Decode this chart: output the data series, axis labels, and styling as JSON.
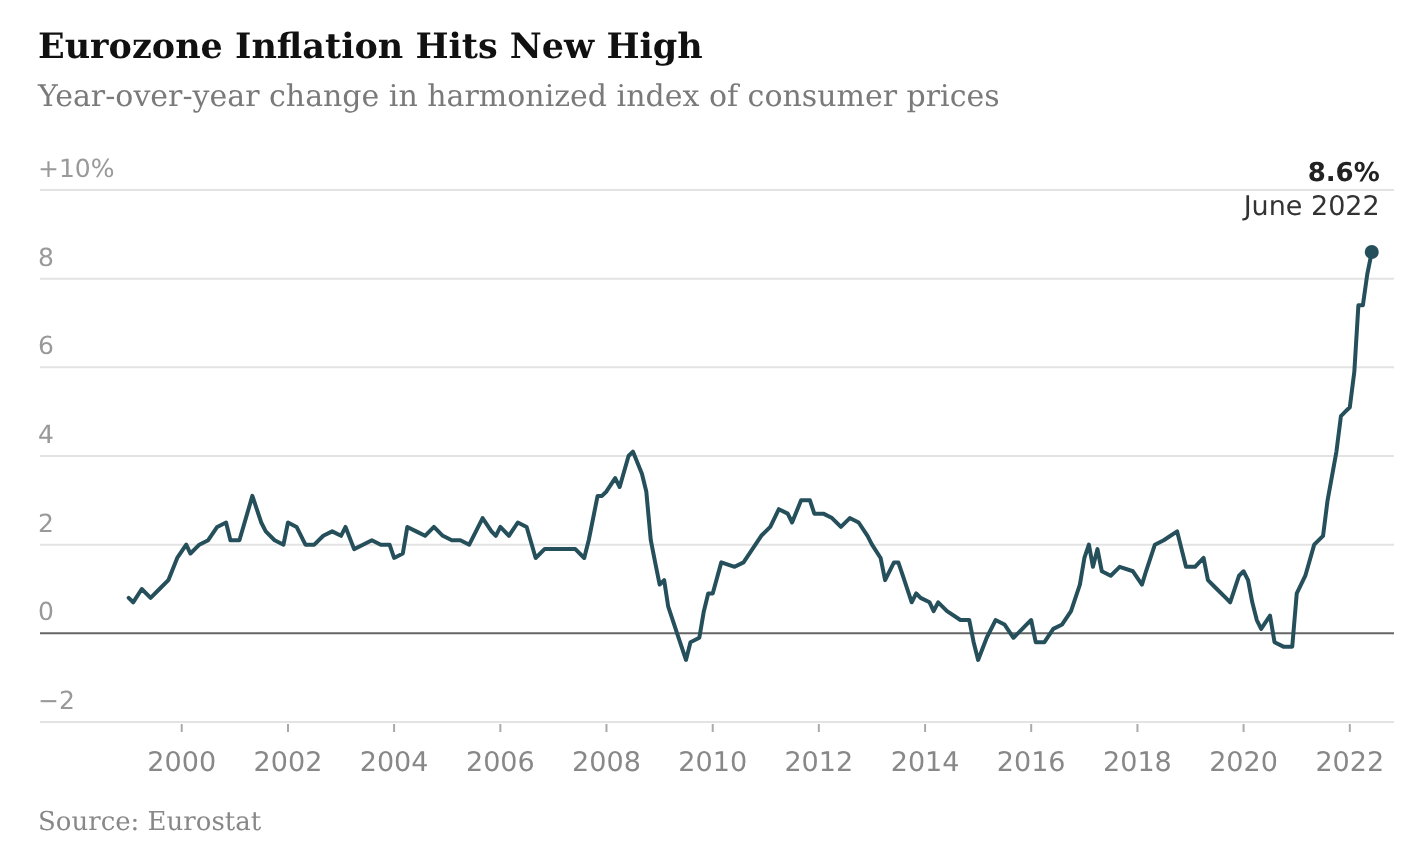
{
  "chart_data": {
    "type": "line",
    "title": "Eurozone Inflation Hits New High",
    "subtitle": "Year-over-year change in harmonized index of consumer prices",
    "annotations": [
      {
        "text": "8.6%",
        "x": "2022-06",
        "y": 8.6
      },
      {
        "text": "June 2022",
        "x": "2022-06",
        "y": 8.6
      },
      "Source: Eurostat"
    ],
    "xlim": [
      "1997-05",
      "2022-11"
    ],
    "xticks": [
      "2000",
      "2002",
      "2004",
      "2006",
      "2008",
      "2010",
      "2012",
      "2014",
      "2016",
      "2018",
      "2020",
      "2022"
    ],
    "ylim": [
      -2,
      10
    ],
    "yticks": [
      {
        "value": -2,
        "label": "−2"
      },
      0,
      2,
      4,
      6,
      8,
      {
        "value": 10,
        "label": "+10%"
      }
    ],
    "grid": "y",
    "series": [
      {
        "color": "#25505b",
        "x": [
          "1999-01",
          "1999-02",
          "1999-04",
          "1999-06",
          "1999-08",
          "1999-10",
          "1999-12",
          "2000-02",
          "2000-03",
          "2000-05",
          "2000-07",
          "2000-09",
          "2000-11",
          "2000-12",
          "2001-02",
          "2001-05",
          "2001-07",
          "2001-08",
          "2001-10",
          "2001-12",
          "2002-01",
          "2002-03",
          "2002-05",
          "2002-07",
          "2002-09",
          "2002-11",
          "2003-01",
          "2003-02",
          "2003-04",
          "2003-06",
          "2003-08",
          "2003-10",
          "2003-12",
          "2004-01",
          "2004-03",
          "2004-04",
          "2004-06",
          "2004-08",
          "2004-10",
          "2004-12",
          "2005-02",
          "2005-04",
          "2005-06",
          "2005-09",
          "2005-11",
          "2005-12",
          "2006-01",
          "2006-03",
          "2006-05",
          "2006-07",
          "2006-09",
          "2006-11",
          "2007-01",
          "2007-04",
          "2007-06",
          "2007-08",
          "2007-09",
          "2007-11",
          "2007-12",
          "2008-01",
          "2008-03",
          "2008-04",
          "2008-06",
          "2008-07",
          "2008-09",
          "2008-10",
          "2008-11",
          "2008-12",
          "2009-01",
          "2009-02",
          "2009-03",
          "2009-05",
          "2009-07",
          "2009-08",
          "2009-10",
          "2009-11",
          "2009-12",
          "2010-01",
          "2010-03",
          "2010-06",
          "2010-08",
          "2010-10",
          "2010-12",
          "2011-02",
          "2011-04",
          "2011-06",
          "2011-07",
          "2011-09",
          "2011-11",
          "2011-12",
          "2012-02",
          "2012-04",
          "2012-06",
          "2012-08",
          "2012-10",
          "2012-12",
          "2013-01",
          "2013-03",
          "2013-04",
          "2013-06",
          "2013-07",
          "2013-08",
          "2013-10",
          "2013-11",
          "2013-12",
          "2014-02",
          "2014-03",
          "2014-04",
          "2014-06",
          "2014-09",
          "2014-11",
          "2014-12",
          "2015-01",
          "2015-03",
          "2015-05",
          "2015-07",
          "2015-09",
          "2015-11",
          "2015-12",
          "2016-01",
          "2016-02",
          "2016-04",
          "2016-06",
          "2016-08",
          "2016-10",
          "2016-12",
          "2017-01",
          "2017-02",
          "2017-03",
          "2017-04",
          "2017-05",
          "2017-07",
          "2017-09",
          "2017-12",
          "2018-02",
          "2018-03",
          "2018-05",
          "2018-07",
          "2018-10",
          "2018-12",
          "2019-02",
          "2019-04",
          "2019-05",
          "2019-07",
          "2019-09",
          "2019-10",
          "2019-12",
          "2020-01",
          "2020-02",
          "2020-03",
          "2020-04",
          "2020-05",
          "2020-07",
          "2020-08",
          "2020-10",
          "2020-12",
          "2021-01",
          "2021-03",
          "2021-05",
          "2021-07",
          "2021-08",
          "2021-10",
          "2021-11",
          "2021-12",
          "2022-01",
          "2022-02",
          "2022-03",
          "2022-04",
          "2022-05",
          "2022-06"
        ],
        "values": [
          0.8,
          0.7,
          1.0,
          0.8,
          1.0,
          1.2,
          1.7,
          2.0,
          1.8,
          2.0,
          2.1,
          2.4,
          2.5,
          2.1,
          2.1,
          3.1,
          2.5,
          2.3,
          2.1,
          2.0,
          2.5,
          2.4,
          2.0,
          2.0,
          2.2,
          2.3,
          2.2,
          2.4,
          1.9,
          2.0,
          2.1,
          2.0,
          2.0,
          1.7,
          1.8,
          2.4,
          2.3,
          2.2,
          2.4,
          2.2,
          2.1,
          2.1,
          2.0,
          2.6,
          2.3,
          2.2,
          2.4,
          2.2,
          2.5,
          2.4,
          1.7,
          1.9,
          1.9,
          1.9,
          1.9,
          1.7,
          2.1,
          3.1,
          3.1,
          3.2,
          3.5,
          3.3,
          4.0,
          4.1,
          3.6,
          3.2,
          2.1,
          1.6,
          1.1,
          1.2,
          0.6,
          0.0,
          -0.6,
          -0.2,
          -0.1,
          0.5,
          0.9,
          0.9,
          1.6,
          1.5,
          1.6,
          1.9,
          2.2,
          2.4,
          2.8,
          2.7,
          2.5,
          3.0,
          3.0,
          2.7,
          2.7,
          2.6,
          2.4,
          2.6,
          2.5,
          2.2,
          2.0,
          1.7,
          1.2,
          1.6,
          1.6,
          1.3,
          0.7,
          0.9,
          0.8,
          0.7,
          0.5,
          0.7,
          0.5,
          0.3,
          0.3,
          -0.2,
          -0.6,
          -0.1,
          0.3,
          0.2,
          -0.1,
          0.1,
          0.2,
          0.3,
          -0.2,
          -0.2,
          0.1,
          0.2,
          0.5,
          1.1,
          1.7,
          2.0,
          1.5,
          1.9,
          1.4,
          1.3,
          1.5,
          1.4,
          1.1,
          1.4,
          2.0,
          2.1,
          2.3,
          1.5,
          1.5,
          1.7,
          1.2,
          1.0,
          0.8,
          0.7,
          1.3,
          1.4,
          1.2,
          0.7,
          0.3,
          0.1,
          0.4,
          -0.2,
          -0.3,
          -0.3,
          0.9,
          1.3,
          2.0,
          2.2,
          3.0,
          4.1,
          4.9,
          5.0,
          5.1,
          5.9,
          7.4,
          7.4,
          8.1,
          8.6
        ]
      },
      {
        "type": "scatter",
        "color": "#25505b",
        "x": [
          "2022-06"
        ],
        "values": [
          8.6
        ]
      }
    ]
  }
}
